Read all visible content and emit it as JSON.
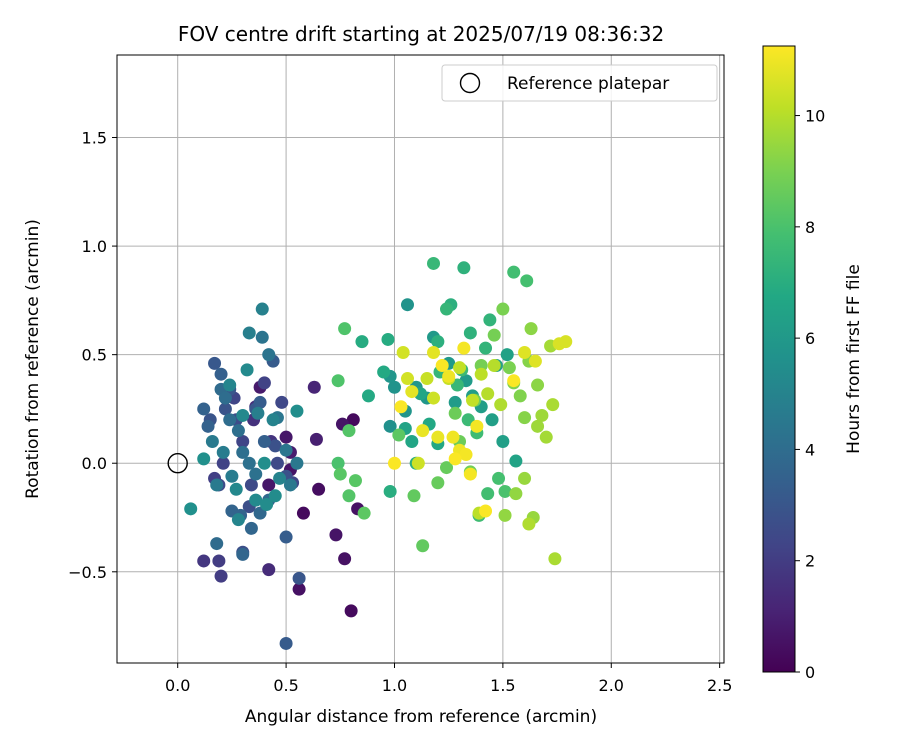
{
  "chart_data": {
    "type": "scatter",
    "title": "FOV centre drift starting at 2025/07/19 08:36:32",
    "xlabel": "Angular distance from reference (arcmin)",
    "ylabel": "Rotation from reference (arcmin)",
    "xlim": [
      -0.28,
      2.52
    ],
    "ylim": [
      -0.92,
      1.88
    ],
    "x_ticks": [
      0.0,
      0.5,
      1.0,
      1.5,
      2.0,
      2.5
    ],
    "x_tick_labels": [
      "0.0",
      "0.5",
      "1.0",
      "1.5",
      "2.0",
      "2.5"
    ],
    "y_ticks": [
      -0.5,
      0.0,
      0.5,
      1.0,
      1.5
    ],
    "y_tick_labels": [
      "−0.5",
      "0.0",
      "0.5",
      "1.0",
      "1.5"
    ],
    "grid": true,
    "legend": {
      "placement": "top-right",
      "entries": [
        {
          "label": "Reference platepar",
          "marker": "open-circle"
        }
      ]
    },
    "reference_point": {
      "x": 0.0,
      "y": 0.0
    },
    "colorbar": {
      "label": "Hours from first FF file",
      "colormap": "viridis",
      "range": [
        0,
        11.25
      ],
      "ticks": [
        0,
        2,
        4,
        6,
        8,
        10
      ],
      "tick_labels": [
        "0",
        "2",
        "4",
        "6",
        "8",
        "10"
      ]
    },
    "points": [
      [
        0.81,
        0.2,
        0.3
      ],
      [
        0.8,
        -0.68,
        0.3
      ],
      [
        0.58,
        -0.23,
        0.3
      ],
      [
        0.65,
        -0.12,
        0.4
      ],
      [
        0.56,
        -0.58,
        0.5
      ],
      [
        0.77,
        -0.44,
        0.5
      ],
      [
        0.83,
        -0.21,
        0.5
      ],
      [
        0.73,
        -0.33,
        0.6
      ],
      [
        0.76,
        0.18,
        0.6
      ],
      [
        0.42,
        -0.1,
        0.7
      ],
      [
        0.52,
        -0.03,
        0.6
      ],
      [
        0.5,
        0.12,
        0.7
      ],
      [
        0.38,
        0.35,
        0.8
      ],
      [
        0.52,
        0.05,
        0.9
      ],
      [
        0.64,
        0.11,
        1.0
      ],
      [
        0.63,
        0.35,
        1.2
      ],
      [
        0.42,
        -0.49,
        1.4
      ],
      [
        0.36,
        0.26,
        1.5
      ],
      [
        0.35,
        0.2,
        1.6
      ],
      [
        0.43,
        0.1,
        1.7
      ],
      [
        0.12,
        -0.45,
        1.8
      ],
      [
        0.2,
        -0.52,
        2.0
      ],
      [
        0.19,
        -0.45,
        2.0
      ],
      [
        0.17,
        -0.07,
        2.1
      ],
      [
        0.4,
        0.37,
        2.2
      ],
      [
        0.21,
        0.0,
        2.2
      ],
      [
        0.26,
        0.3,
        2.3
      ],
      [
        0.3,
        0.1,
        2.3
      ],
      [
        0.48,
        0.28,
        2.4
      ],
      [
        0.53,
        -0.09,
        2.4
      ],
      [
        0.34,
        -0.1,
        2.5
      ],
      [
        0.46,
        0.0,
        2.5
      ],
      [
        0.19,
        -0.1,
        2.6
      ],
      [
        0.27,
        0.2,
        2.6
      ],
      [
        0.3,
        -0.41,
        2.7
      ],
      [
        0.33,
        -0.2,
        2.7
      ],
      [
        0.45,
        0.08,
        2.8
      ],
      [
        0.5,
        -0.06,
        2.8
      ],
      [
        0.22,
        0.25,
        2.9
      ],
      [
        0.15,
        0.2,
        2.9
      ],
      [
        0.56,
        -0.53,
        3.0
      ],
      [
        0.5,
        -0.83,
        3.2
      ],
      [
        0.24,
        0.34,
        3.0
      ],
      [
        0.17,
        0.46,
        3.1
      ],
      [
        0.36,
        0.25,
        3.1
      ],
      [
        0.44,
        0.47,
        3.2
      ],
      [
        0.38,
        0.28,
        3.3
      ],
      [
        0.5,
        -0.34,
        3.3
      ],
      [
        0.4,
        0.1,
        3.4
      ],
      [
        0.2,
        0.41,
        3.4
      ],
      [
        0.12,
        0.25,
        3.5
      ],
      [
        0.14,
        0.17,
        3.5
      ],
      [
        0.25,
        -0.22,
        3.6
      ],
      [
        0.29,
        -0.24,
        3.6
      ],
      [
        0.3,
        -0.42,
        3.7
      ],
      [
        0.34,
        -0.3,
        3.7
      ],
      [
        0.38,
        -0.23,
        3.8
      ],
      [
        0.42,
        -0.17,
        3.8
      ],
      [
        0.18,
        -0.37,
        3.9
      ],
      [
        0.2,
        0.34,
        3.9
      ],
      [
        0.22,
        0.3,
        4.0
      ],
      [
        0.24,
        0.2,
        4.0
      ],
      [
        0.28,
        0.15,
        4.1
      ],
      [
        0.3,
        0.05,
        4.1
      ],
      [
        0.33,
        0.0,
        4.2
      ],
      [
        0.36,
        -0.05,
        4.2
      ],
      [
        0.39,
        0.58,
        4.3
      ],
      [
        0.42,
        0.5,
        4.3
      ],
      [
        0.46,
        0.21,
        4.4
      ],
      [
        0.5,
        0.06,
        4.4
      ],
      [
        0.52,
        -0.1,
        4.5
      ],
      [
        0.55,
        0.0,
        4.5
      ],
      [
        0.18,
        -0.1,
        4.6
      ],
      [
        0.16,
        0.1,
        4.6
      ],
      [
        0.21,
        0.05,
        4.7
      ],
      [
        0.25,
        -0.06,
        4.7
      ],
      [
        0.33,
        0.6,
        4.8
      ],
      [
        0.37,
        0.23,
        4.8
      ],
      [
        0.39,
        0.71,
        4.9
      ],
      [
        0.44,
        0.2,
        5.0
      ],
      [
        0.47,
        -0.07,
        5.0
      ],
      [
        0.28,
        -0.26,
        5.1
      ],
      [
        0.24,
        0.36,
        5.1
      ],
      [
        0.3,
        0.22,
        5.2
      ],
      [
        0.27,
        -0.12,
        5.2
      ],
      [
        0.32,
        0.43,
        5.3
      ],
      [
        0.36,
        -0.17,
        5.3
      ],
      [
        0.41,
        -0.19,
        5.4
      ],
      [
        0.45,
        -0.15,
        5.4
      ],
      [
        0.55,
        0.24,
        5.5
      ],
      [
        0.4,
        0.0,
        5.5
      ],
      [
        0.12,
        0.02,
        5.6
      ],
      [
        0.06,
        -0.21,
        5.6
      ],
      [
        0.98,
        0.17,
        5.6
      ],
      [
        1.06,
        0.73,
        5.7
      ],
      [
        1.0,
        0.35,
        5.7
      ],
      [
        0.98,
        0.4,
        5.8
      ],
      [
        1.05,
        0.24,
        5.8
      ],
      [
        1.1,
        0.35,
        5.9
      ],
      [
        1.15,
        0.3,
        5.9
      ],
      [
        1.18,
        0.58,
        6.0
      ],
      [
        1.25,
        0.46,
        6.0
      ],
      [
        1.28,
        0.28,
        6.1
      ],
      [
        1.33,
        0.38,
        6.1
      ],
      [
        1.36,
        0.31,
        6.2
      ],
      [
        1.4,
        0.26,
        6.2
      ],
      [
        1.45,
        0.2,
        6.3
      ],
      [
        1.5,
        0.1,
        6.3
      ],
      [
        1.47,
        0.45,
        6.4
      ],
      [
        1.52,
        0.5,
        6.4
      ],
      [
        1.56,
        0.01,
        6.5
      ],
      [
        1.05,
        0.16,
        6.5
      ],
      [
        1.08,
        0.1,
        6.6
      ],
      [
        1.12,
        0.32,
        6.6
      ],
      [
        1.16,
        0.18,
        6.7
      ],
      [
        1.2,
        0.09,
        6.7
      ],
      [
        0.95,
        0.42,
        6.8
      ],
      [
        0.88,
        0.31,
        6.8
      ],
      [
        0.97,
        0.57,
        6.9
      ],
      [
        0.85,
        0.56,
        6.9
      ],
      [
        0.98,
        -0.13,
        7.0
      ],
      [
        1.1,
        0.0,
        7.0
      ],
      [
        1.2,
        0.56,
        7.1
      ],
      [
        1.26,
        0.73,
        7.1
      ],
      [
        1.32,
        0.9,
        7.2
      ],
      [
        1.35,
        0.6,
        7.2
      ],
      [
        1.42,
        0.53,
        7.3
      ],
      [
        1.44,
        0.66,
        7.3
      ],
      [
        1.21,
        0.42,
        7.4
      ],
      [
        1.24,
        0.71,
        7.4
      ],
      [
        1.18,
        0.92,
        7.5
      ],
      [
        1.29,
        0.36,
        7.5
      ],
      [
        1.31,
        0.43,
        7.6
      ],
      [
        1.34,
        0.2,
        7.6
      ],
      [
        1.38,
        0.14,
        7.7
      ],
      [
        1.39,
        -0.24,
        7.7
      ],
      [
        1.43,
        -0.14,
        7.8
      ],
      [
        1.55,
        0.88,
        7.8
      ],
      [
        1.61,
        0.84,
        7.9
      ],
      [
        1.48,
        -0.07,
        7.9
      ],
      [
        1.51,
        -0.13,
        8.0
      ],
      [
        0.74,
        0.0,
        8.0
      ],
      [
        0.74,
        0.38,
        8.1
      ],
      [
        0.77,
        0.62,
        8.1
      ],
      [
        0.79,
        0.15,
        8.2
      ],
      [
        0.79,
        -0.15,
        8.2
      ],
      [
        0.75,
        -0.05,
        8.3
      ],
      [
        0.82,
        -0.08,
        8.3
      ],
      [
        0.86,
        -0.23,
        8.4
      ],
      [
        1.02,
        0.13,
        8.4
      ],
      [
        1.09,
        -0.15,
        8.5
      ],
      [
        1.13,
        -0.38,
        8.5
      ],
      [
        1.2,
        -0.09,
        8.6
      ],
      [
        1.24,
        -0.02,
        8.6
      ],
      [
        1.28,
        0.23,
        8.7
      ],
      [
        1.3,
        0.1,
        8.7
      ],
      [
        1.35,
        -0.04,
        8.8
      ],
      [
        1.37,
        0.29,
        8.8
      ],
      [
        1.4,
        0.45,
        8.9
      ],
      [
        1.46,
        0.59,
        8.9
      ],
      [
        1.5,
        0.71,
        9.0
      ],
      [
        1.53,
        0.44,
        9.0
      ],
      [
        1.55,
        0.37,
        9.1
      ],
      [
        1.58,
        0.31,
        9.1
      ],
      [
        1.6,
        0.21,
        9.2
      ],
      [
        1.62,
        0.47,
        9.2
      ],
      [
        1.66,
        0.36,
        9.3
      ],
      [
        1.63,
        0.62,
        9.3
      ],
      [
        1.51,
        -0.24,
        9.4
      ],
      [
        1.56,
        -0.14,
        9.4
      ],
      [
        1.6,
        -0.07,
        9.5
      ],
      [
        1.64,
        -0.25,
        9.5
      ],
      [
        1.66,
        0.17,
        9.6
      ],
      [
        1.68,
        0.22,
        9.6
      ],
      [
        1.7,
        0.12,
        9.7
      ],
      [
        1.72,
        0.54,
        9.7
      ],
      [
        1.74,
        -0.44,
        9.8
      ],
      [
        1.73,
        0.27,
        9.8
      ],
      [
        1.62,
        -0.28,
        9.9
      ],
      [
        1.49,
        0.27,
        9.9
      ],
      [
        1.46,
        0.45,
        10.0
      ],
      [
        1.43,
        0.32,
        10.0
      ],
      [
        1.4,
        0.41,
        10.1
      ],
      [
        1.39,
        -0.23,
        10.1
      ],
      [
        1.36,
        0.29,
        10.2
      ],
      [
        1.3,
        0.44,
        10.2
      ],
      [
        1.25,
        0.39,
        10.3
      ],
      [
        1.15,
        0.39,
        10.3
      ],
      [
        1.18,
        0.3,
        10.4
      ],
      [
        1.11,
        0.0,
        10.4
      ],
      [
        1.04,
        0.51,
        10.5
      ],
      [
        1.06,
        0.39,
        10.5
      ],
      [
        1.76,
        0.55,
        10.6
      ],
      [
        1.79,
        0.56,
        10.6
      ],
      [
        1.6,
        0.51,
        10.7
      ],
      [
        1.65,
        0.47,
        10.7
      ],
      [
        1.08,
        0.33,
        10.8
      ],
      [
        1.18,
        0.51,
        10.8
      ],
      [
        1.13,
        0.15,
        10.9
      ],
      [
        1.2,
        0.12,
        10.9
      ],
      [
        1.25,
        0.4,
        11.0
      ],
      [
        1.27,
        0.12,
        11.0
      ],
      [
        1.3,
        0.06,
        11.0
      ],
      [
        1.33,
        0.04,
        11.1
      ],
      [
        1.35,
        -0.05,
        11.1
      ],
      [
        1.38,
        0.17,
        11.1
      ],
      [
        1.32,
        0.53,
        11.1
      ],
      [
        1.03,
        0.26,
        11.2
      ],
      [
        1.0,
        0.0,
        11.2
      ],
      [
        1.22,
        0.45,
        11.2
      ],
      [
        1.28,
        0.02,
        11.2
      ],
      [
        1.42,
        -0.22,
        11.2
      ],
      [
        1.55,
        0.38,
        11.2
      ]
    ]
  }
}
